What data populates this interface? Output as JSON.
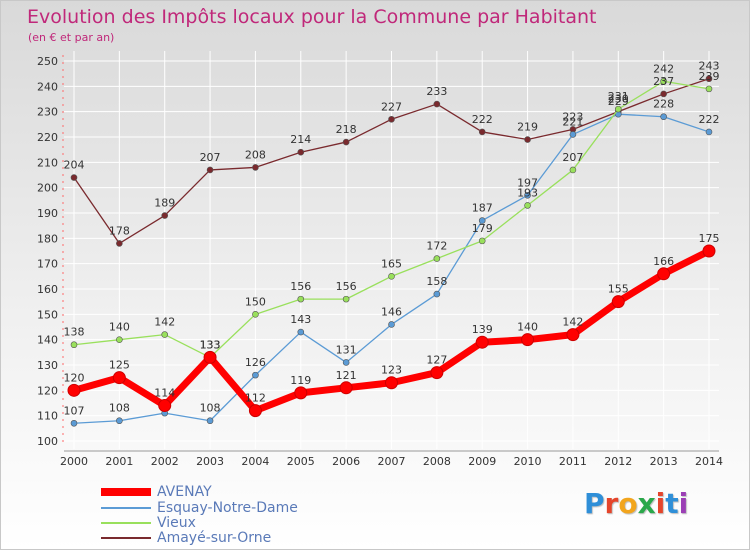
{
  "header": {
    "title": "Evolution des Impôts locaux pour la Commune par Habitant",
    "subtitle": "(en € et par an)"
  },
  "logo": {
    "text": "Proxiti",
    "letters": [
      "P",
      "r",
      "o",
      "x",
      "i",
      "t",
      "i"
    ],
    "colors": [
      "#2f8fd8",
      "#e5452b",
      "#f2a51d",
      "#2aa84a",
      "#e5452b",
      "#2f8fd8",
      "#9b3fb5"
    ]
  },
  "chart_data": {
    "type": "line",
    "title": "Evolution des Impôts locaux pour la Commune par Habitant",
    "subtitle": "(en € et par an)",
    "xlabel": "",
    "ylabel": "",
    "x": [
      "2000",
      "2001",
      "2002",
      "2003",
      "2004",
      "2005",
      "2006",
      "2007",
      "2008",
      "2009",
      "2010",
      "2011",
      "2012",
      "2013",
      "2014"
    ],
    "ylim": [
      100,
      250
    ],
    "yticks": [
      100,
      110,
      120,
      130,
      140,
      150,
      160,
      170,
      180,
      190,
      200,
      210,
      220,
      230,
      240,
      250
    ],
    "grid": true,
    "legend_position": "bottom-left",
    "series": [
      {
        "name": "AVENAY",
        "color": "#ff0000",
        "values": [
          120,
          125,
          114,
          133,
          112,
          119,
          121,
          123,
          127,
          139,
          140,
          142,
          155,
          166,
          175
        ]
      },
      {
        "name": "Esquay-Notre-Dame",
        "color": "#5b9bd5",
        "values": [
          107,
          108,
          111,
          108,
          126,
          143,
          131,
          146,
          158,
          187,
          197,
          221,
          229,
          228,
          222
        ]
      },
      {
        "name": "Vieux",
        "color": "#99e05c",
        "values": [
          138,
          140,
          142,
          133,
          150,
          156,
          156,
          165,
          172,
          179,
          193,
          207,
          231,
          242,
          239
        ]
      },
      {
        "name": "Amayé-sur-Orne",
        "color": "#7a2a2e",
        "values": [
          204,
          178,
          189,
          207,
          208,
          214,
          218,
          227,
          233,
          222,
          219,
          223,
          230,
          237,
          243
        ]
      }
    ],
    "data_labels": [
      {
        "series": "AVENAY",
        "labels": [
          "120",
          "125",
          "114",
          "133",
          "112",
          "119",
          "121",
          "123",
          "127",
          "139",
          "140",
          "142",
          "155",
          "166",
          "175"
        ]
      },
      {
        "series": "Esquay-Notre-Dame",
        "labels": [
          "107",
          "108",
          "",
          "108",
          "126",
          "143",
          "131",
          "146",
          "158",
          "187",
          "197",
          "221",
          "229",
          "228",
          "222"
        ]
      },
      {
        "series": "Vieux",
        "labels": [
          "138",
          "140",
          "142",
          "133",
          "150",
          "156",
          "156",
          "165",
          "172",
          "179",
          "193",
          "207",
          "231",
          "242",
          "239"
        ]
      },
      {
        "series": "Amayé-sur-Orne",
        "labels": [
          "204",
          "178",
          "189",
          "207",
          "208",
          "214",
          "218",
          "227",
          "233",
          "222",
          "219",
          "223",
          "230",
          "237",
          "243"
        ]
      }
    ]
  }
}
